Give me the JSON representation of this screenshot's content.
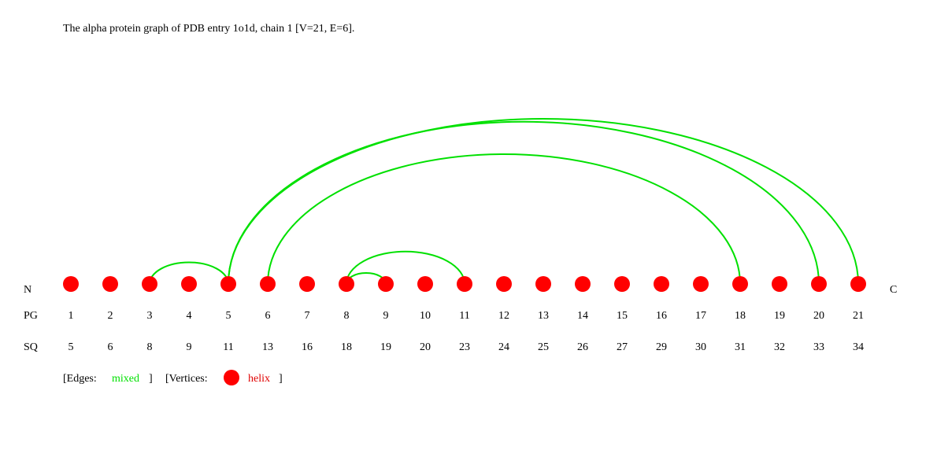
{
  "title": "The alpha protein graph of PDB entry 1o1d, chain 1 [V=21, E=6].",
  "row_labels": {
    "terminus_n": "N",
    "terminus_c": "C",
    "pg": "PG",
    "sq": "SQ"
  },
  "colors": {
    "vertex": "#ff0000",
    "edge_mixed": "#00e000",
    "text": "#000000"
  },
  "vertices": [
    {
      "pg": "1",
      "sq": "5",
      "type": "helix"
    },
    {
      "pg": "2",
      "sq": "6",
      "type": "helix"
    },
    {
      "pg": "3",
      "sq": "8",
      "type": "helix"
    },
    {
      "pg": "4",
      "sq": "9",
      "type": "helix"
    },
    {
      "pg": "5",
      "sq": "11",
      "type": "helix"
    },
    {
      "pg": "6",
      "sq": "13",
      "type": "helix"
    },
    {
      "pg": "7",
      "sq": "16",
      "type": "helix"
    },
    {
      "pg": "8",
      "sq": "18",
      "type": "helix"
    },
    {
      "pg": "9",
      "sq": "19",
      "type": "helix"
    },
    {
      "pg": "10",
      "sq": "20",
      "type": "helix"
    },
    {
      "pg": "11",
      "sq": "23",
      "type": "helix"
    },
    {
      "pg": "12",
      "sq": "24",
      "type": "helix"
    },
    {
      "pg": "13",
      "sq": "25",
      "type": "helix"
    },
    {
      "pg": "14",
      "sq": "26",
      "type": "helix"
    },
    {
      "pg": "15",
      "sq": "27",
      "type": "helix"
    },
    {
      "pg": "16",
      "sq": "29",
      "type": "helix"
    },
    {
      "pg": "17",
      "sq": "30",
      "type": "helix"
    },
    {
      "pg": "18",
      "sq": "31",
      "type": "helix"
    },
    {
      "pg": "19",
      "sq": "32",
      "type": "helix"
    },
    {
      "pg": "20",
      "sq": "33",
      "type": "helix"
    },
    {
      "pg": "21",
      "sq": "34",
      "type": "helix"
    }
  ],
  "edges": [
    {
      "from": 3,
      "to": 5,
      "type": "mixed"
    },
    {
      "from": 5,
      "to": 20,
      "type": "mixed"
    },
    {
      "from": 5,
      "to": 21,
      "type": "mixed"
    },
    {
      "from": 6,
      "to": 18,
      "type": "mixed"
    },
    {
      "from": 8,
      "to": 9,
      "type": "mixed"
    },
    {
      "from": 8,
      "to": 11,
      "type": "mixed"
    }
  ],
  "legend": {
    "edges_prefix": "[Edges:",
    "edges_type": "mixed",
    "edges_suffix": "]",
    "vertices_prefix": "[Vertices:",
    "vertices_type": "helix",
    "vertices_suffix": "]"
  }
}
